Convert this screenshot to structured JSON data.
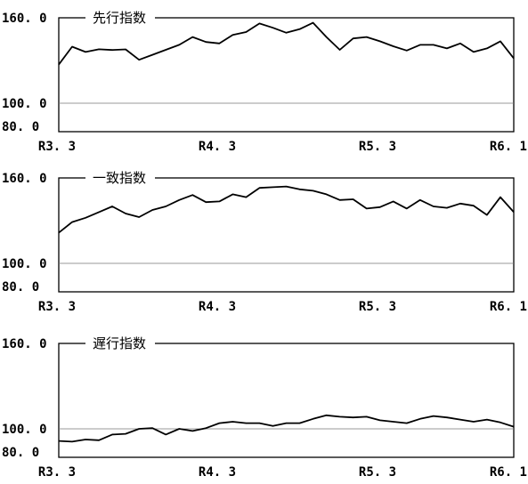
{
  "chart_data": [
    {
      "type": "line",
      "title": "先行指数",
      "x_tick_labels": [
        "R3. 3",
        "R4. 3",
        "R5. 3",
        "R6. 1"
      ],
      "y_tick_labels": [
        "160. 0",
        "100. 0",
        "80. 0"
      ],
      "ylim": [
        80,
        160
      ],
      "reference_line": 100,
      "values": [
        127.1,
        139.7,
        136.0,
        137.9,
        137.4,
        137.8,
        130.5,
        134.0,
        137.5,
        141.0,
        146.5,
        143.0,
        142.0,
        148.0,
        150.0,
        156.0,
        153.0,
        149.5,
        152.0,
        156.5,
        146.5,
        137.5,
        145.5,
        146.5,
        143.5,
        140.0,
        137.0,
        141.0,
        141.0,
        138.5,
        142.0,
        136.0,
        138.5,
        143.5,
        131.5
      ]
    },
    {
      "type": "line",
      "title": "一致指数",
      "x_tick_labels": [
        "R3. 3",
        "R4. 3",
        "R5. 3",
        "R6. 1"
      ],
      "y_tick_labels": [
        "160. 0",
        "100. 0",
        "80. 0"
      ],
      "ylim": [
        80,
        160
      ],
      "reference_line": 100,
      "values": [
        121.5,
        129.0,
        132.0,
        136.0,
        140.0,
        135.0,
        132.5,
        137.5,
        140.0,
        144.5,
        148.0,
        143.0,
        143.5,
        148.5,
        146.5,
        153.0,
        153.5,
        154.0,
        152.0,
        151.0,
        148.5,
        144.5,
        145.0,
        138.5,
        139.5,
        143.5,
        138.5,
        144.5,
        140.0,
        139.0,
        142.0,
        140.5,
        134.0,
        146.5,
        136.0
      ]
    },
    {
      "type": "line",
      "title": "遅行指数",
      "x_tick_labels": [
        "R3. 3",
        "R4. 3",
        "R5. 3",
        "R6. 1"
      ],
      "y_tick_labels": [
        "160. 0",
        "100. 0",
        "80. 0"
      ],
      "ylim": [
        80,
        160
      ],
      "reference_line": 100,
      "values": [
        91.5,
        91.0,
        92.5,
        92.0,
        96.0,
        96.5,
        100.0,
        100.5,
        96.0,
        100.0,
        98.5,
        100.5,
        104.0,
        105.0,
        104.0,
        104.0,
        102.0,
        104.0,
        104.0,
        107.0,
        109.5,
        108.5,
        108.0,
        108.5,
        106.0,
        105.0,
        104.0,
        107.0,
        109.0,
        108.0,
        106.5,
        105.0,
        106.5,
        104.5,
        101.5
      ]
    }
  ]
}
